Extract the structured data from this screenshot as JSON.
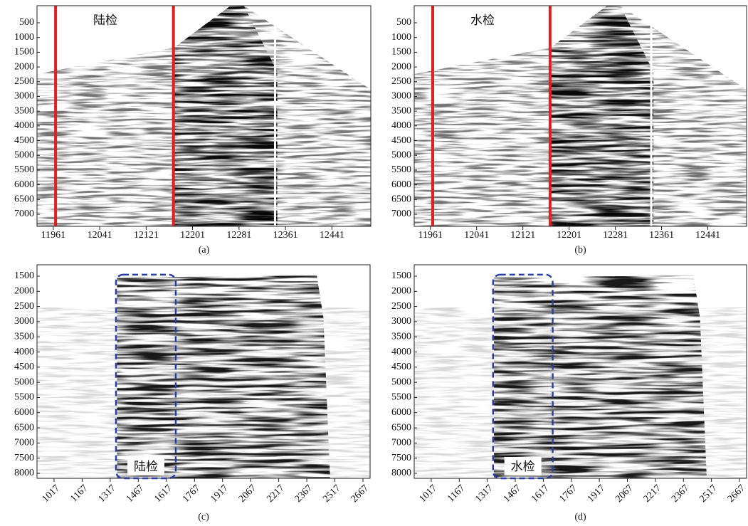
{
  "chart_data": [
    {
      "type": "seismic",
      "caption": "(a)",
      "annotation": "陆检",
      "xlim": [
        11933,
        12508
      ],
      "ylim": [
        -80,
        7410
      ],
      "y_inverted": true,
      "xticks": [
        11961,
        12041,
        12121,
        12201,
        12281,
        12361,
        12441
      ],
      "yticks": [
        500,
        1000,
        1500,
        2000,
        2500,
        3000,
        3500,
        4000,
        4500,
        5000,
        5500,
        6000,
        6500,
        7000
      ],
      "vlines": [
        11965,
        12168
      ],
      "vline_color": "#e02020"
    },
    {
      "type": "seismic",
      "caption": "(b)",
      "annotation": "水检",
      "xlim": [
        11933,
        12508
      ],
      "ylim": [
        -80,
        7410
      ],
      "y_inverted": true,
      "xticks": [
        11961,
        12041,
        12121,
        12201,
        12281,
        12361,
        12441
      ],
      "yticks": [
        500,
        1000,
        1500,
        2000,
        2500,
        3000,
        3500,
        4000,
        4500,
        5000,
        5500,
        6000,
        6500,
        7000
      ],
      "vlines": [
        11965,
        12168
      ],
      "vline_color": "#e02020"
    },
    {
      "type": "seismic",
      "caption": "(c)",
      "annotation": "陆检",
      "xlim": [
        926,
        2705
      ],
      "ylim": [
        1125,
        8164
      ],
      "y_inverted": true,
      "xticks": [
        1017,
        1167,
        1317,
        1467,
        1617,
        1767,
        1917,
        2067,
        2217,
        2367,
        2517,
        2667
      ],
      "yticks": [
        1500,
        2000,
        2500,
        3000,
        3500,
        4000,
        4500,
        5000,
        5500,
        6000,
        6500,
        7000,
        7500,
        8000
      ],
      "box": {
        "x": [
          1348,
          1667
        ],
        "y": [
          1450,
          8164
        ]
      },
      "box_color": "#2b3fa8"
    },
    {
      "type": "seismic",
      "caption": "(d)",
      "annotation": "水检",
      "xlim": [
        926,
        2705
      ],
      "ylim": [
        1125,
        8164
      ],
      "y_inverted": true,
      "xticks": [
        1017,
        1167,
        1317,
        1467,
        1617,
        1767,
        1917,
        2067,
        2217,
        2367,
        2517,
        2667
      ],
      "yticks": [
        1500,
        2000,
        2500,
        3000,
        3500,
        4000,
        4500,
        5000,
        5500,
        6000,
        6500,
        7000,
        7500,
        8000
      ],
      "box": {
        "x": [
          1348,
          1667
        ],
        "y": [
          1450,
          8164
        ]
      },
      "box_color": "#2b3fa8"
    }
  ]
}
